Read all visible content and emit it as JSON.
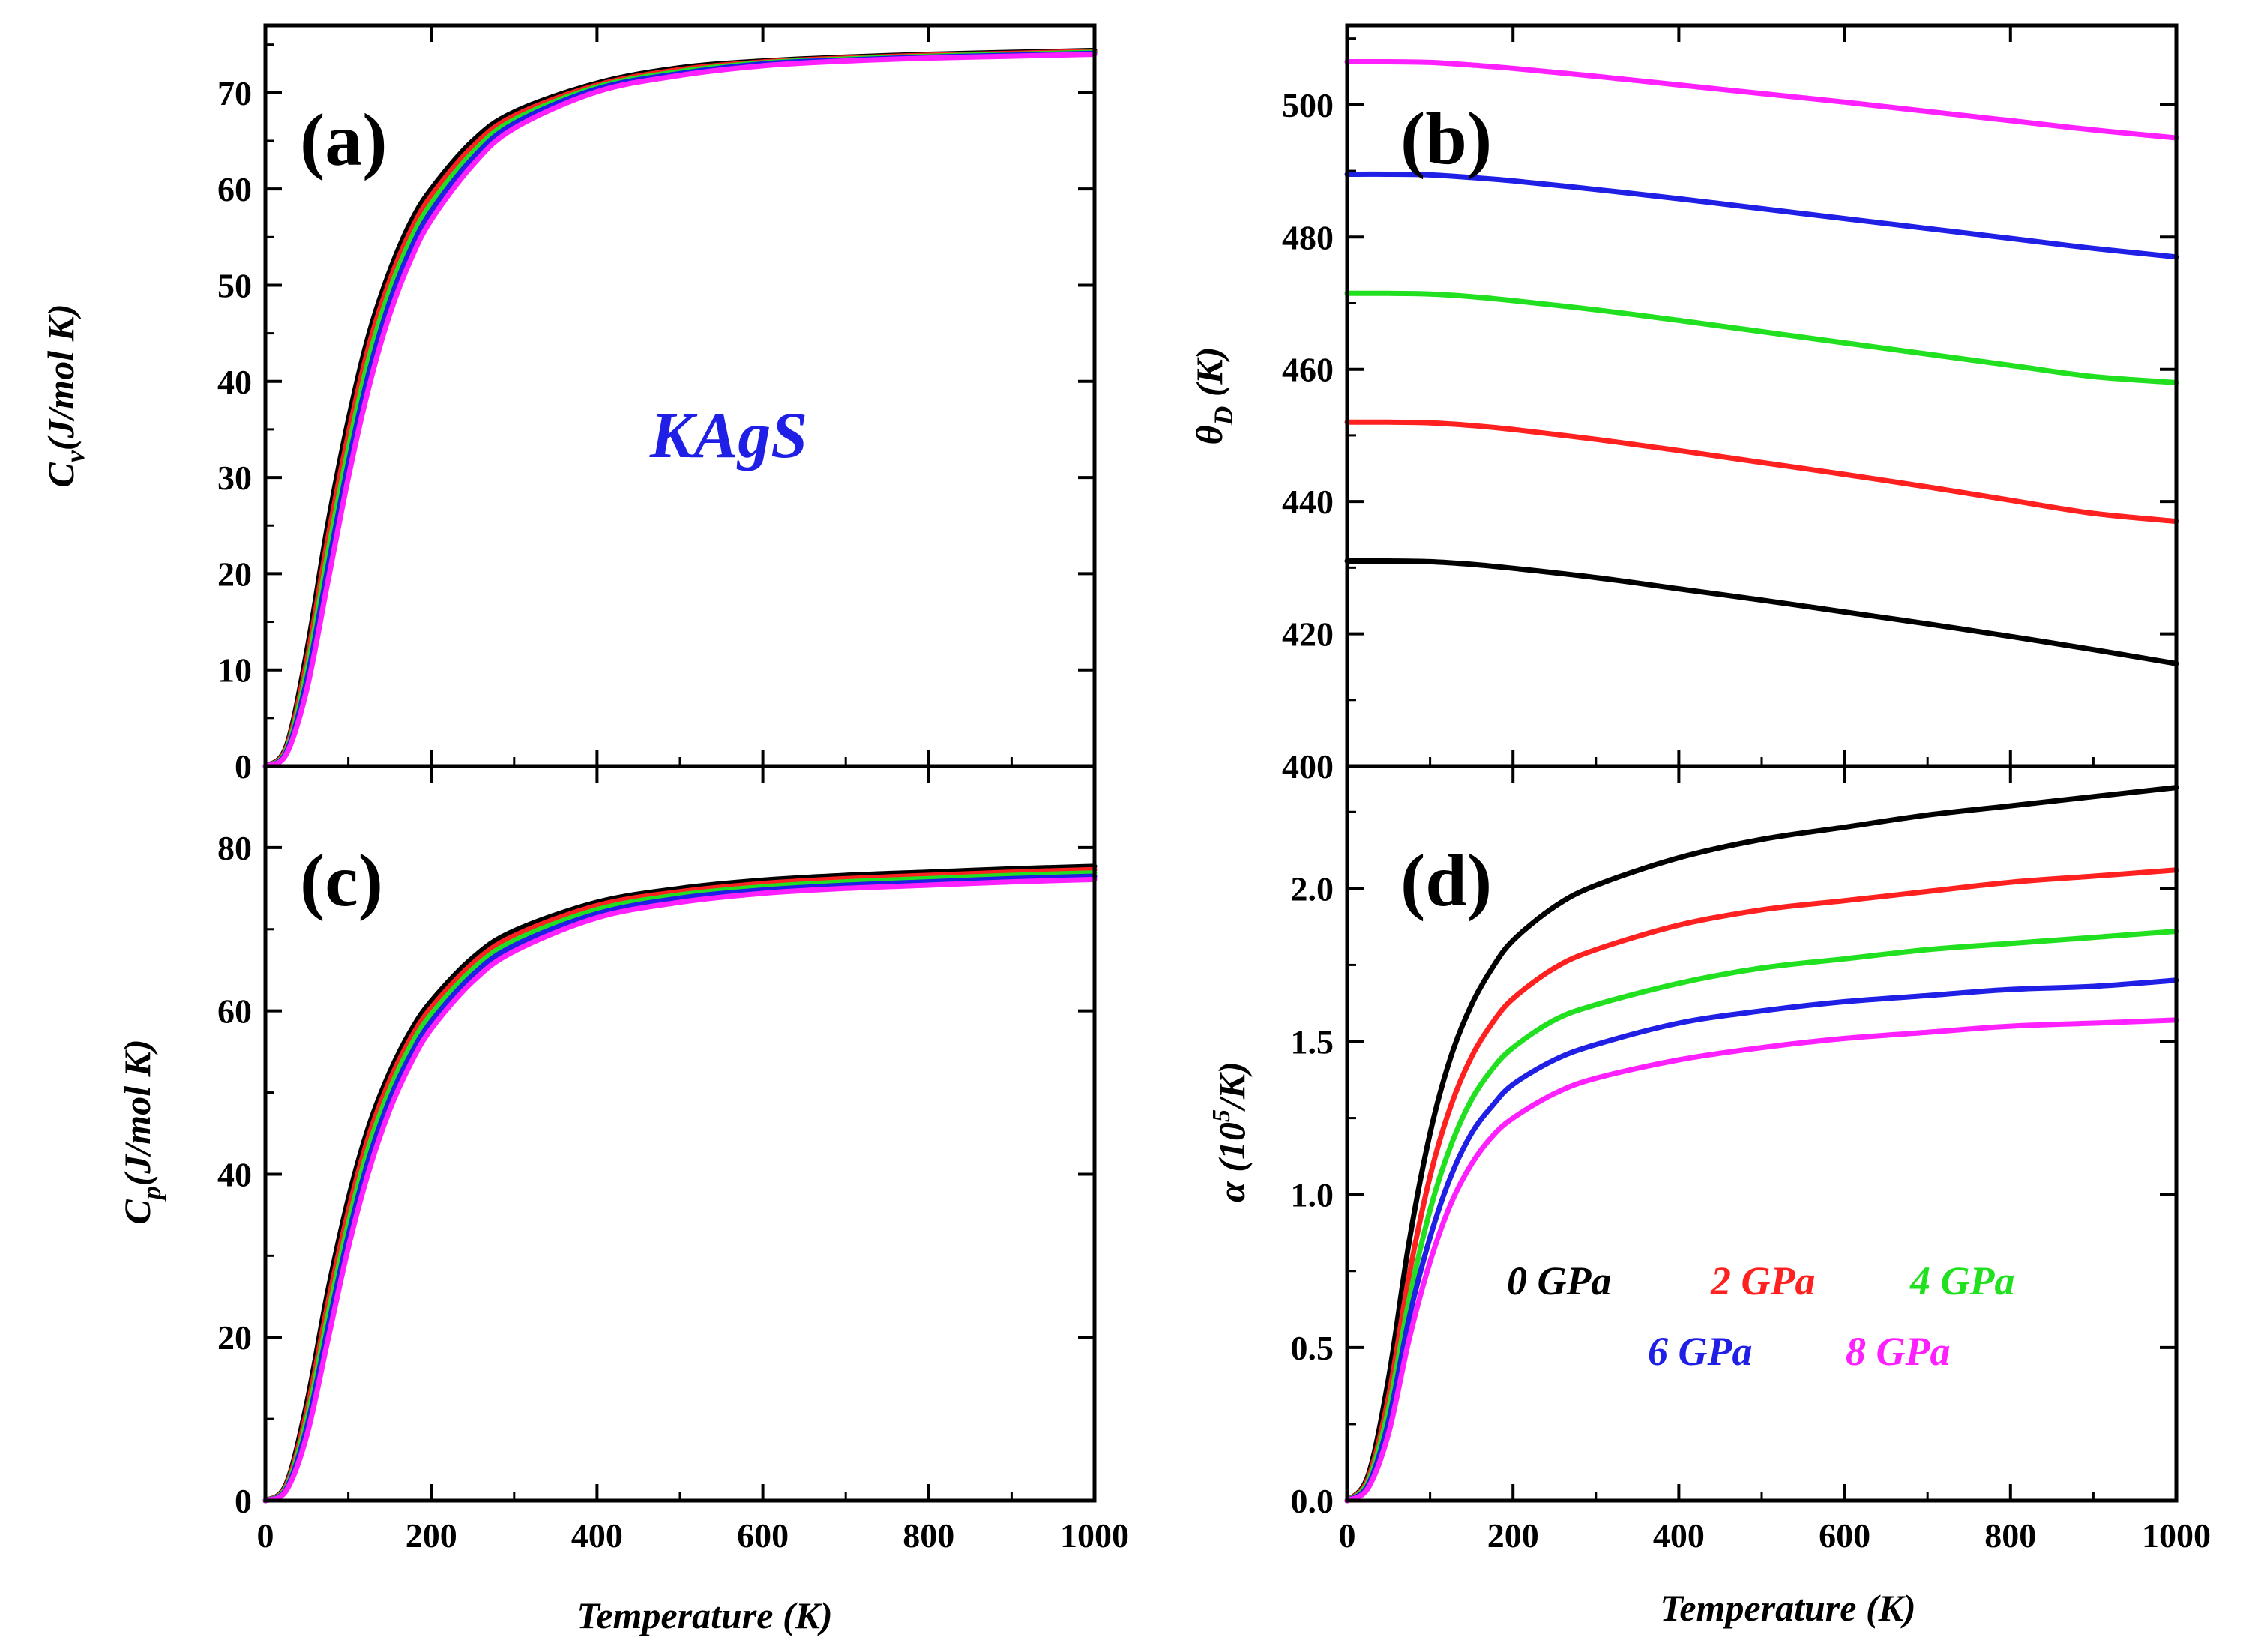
{
  "figure": {
    "material_label": "KAgS",
    "material_color": "#1f1fe6",
    "xlabel": "Temperature (K)"
  },
  "legend": {
    "entries": [
      {
        "name": "0 GPa",
        "color": "#000000"
      },
      {
        "name": "2 GPa",
        "color": "#ff2020"
      },
      {
        "name": "4 GPa",
        "color": "#20e020"
      },
      {
        "name": "6 GPa",
        "color": "#1f1fe6"
      },
      {
        "name": "8 GPa",
        "color": "#ff20ff"
      }
    ]
  },
  "chart_data": [
    {
      "id": "a",
      "type": "line",
      "panel_label": "(a)",
      "ylabel": "C",
      "ylabel_sub": "v",
      "ylabel_rest": "(J/mol K)",
      "xlim": [
        0,
        1000
      ],
      "ylim": [
        0,
        77
      ],
      "xticks": [
        0,
        200,
        400,
        600,
        800,
        1000
      ],
      "yticks": [
        0,
        10,
        20,
        30,
        40,
        50,
        60,
        70
      ],
      "x": [
        0,
        25,
        50,
        75,
        100,
        125,
        150,
        175,
        200,
        250,
        300,
        400,
        500,
        600,
        700,
        800,
        900,
        1000
      ],
      "series": [
        {
          "name": "0 GPa",
          "color": "#000000",
          "values": [
            0,
            2,
            12,
            25,
            36,
            45,
            51.5,
            56.5,
            60,
            65,
            68,
            71,
            72.6,
            73.3,
            73.7,
            74,
            74.2,
            74.4
          ]
        },
        {
          "name": "2 GPa",
          "color": "#ff2020",
          "values": [
            0,
            1.8,
            11,
            23.5,
            34.5,
            43.8,
            50.5,
            55.6,
            59.3,
            64.4,
            67.6,
            70.8,
            72.4,
            73.2,
            73.6,
            73.9,
            74.1,
            74.3
          ]
        },
        {
          "name": "4 GPa",
          "color": "#20e020",
          "values": [
            0,
            1.6,
            10,
            22,
            33,
            42.5,
            49.5,
            54.7,
            58.5,
            63.8,
            67.2,
            70.6,
            72.2,
            73.1,
            73.5,
            73.8,
            74,
            74.2
          ]
        },
        {
          "name": "6 GPa",
          "color": "#1f1fe6",
          "values": [
            0,
            1.4,
            9,
            20.5,
            31.5,
            41,
            48.3,
            53.7,
            57.7,
            63.2,
            66.8,
            70.4,
            72,
            73,
            73.4,
            73.7,
            73.9,
            74.1
          ]
        },
        {
          "name": "8 GPa",
          "color": "#ff20ff",
          "values": [
            0,
            1.2,
            8,
            19,
            30,
            39.5,
            47,
            52.6,
            56.8,
            62.5,
            66.3,
            70.1,
            71.8,
            72.8,
            73.3,
            73.6,
            73.8,
            74
          ]
        }
      ]
    },
    {
      "id": "b",
      "type": "line",
      "panel_label": "(b)",
      "ylabel": "θ",
      "ylabel_sub": "D",
      "ylabel_rest": " (K)",
      "xlim": [
        0,
        1000
      ],
      "ylim": [
        400,
        512
      ],
      "xticks": [
        0,
        200,
        400,
        600,
        800,
        1000
      ],
      "yticks": [
        400,
        420,
        440,
        460,
        480,
        500
      ],
      "x": [
        0,
        50,
        100,
        150,
        200,
        300,
        400,
        500,
        600,
        700,
        800,
        900,
        1000
      ],
      "series": [
        {
          "name": "0 GPa",
          "color": "#000000",
          "values": [
            431,
            431,
            430.9,
            430.5,
            429.9,
            428.5,
            426.8,
            425.1,
            423.3,
            421.5,
            419.6,
            417.6,
            415.5
          ]
        },
        {
          "name": "2 GPa",
          "color": "#ff2020",
          "values": [
            452,
            452,
            451.9,
            451.5,
            450.9,
            449.4,
            447.7,
            445.9,
            444.1,
            442.2,
            440.2,
            438.2,
            437
          ]
        },
        {
          "name": "4 GPa",
          "color": "#20e020",
          "values": [
            471.5,
            471.5,
            471.4,
            471,
            470.4,
            469,
            467.4,
            465.7,
            464,
            462.3,
            460.6,
            458.9,
            458
          ]
        },
        {
          "name": "6 GPa",
          "color": "#1f1fe6",
          "values": [
            489.5,
            489.5,
            489.4,
            489,
            488.5,
            487.2,
            485.8,
            484.3,
            482.8,
            481.3,
            479.8,
            478.3,
            477
          ]
        },
        {
          "name": "8 GPa",
          "color": "#ff20ff",
          "values": [
            506.5,
            506.5,
            506.4,
            506,
            505.5,
            504.3,
            503,
            501.7,
            500.4,
            499,
            497.6,
            496.2,
            495
          ]
        }
      ]
    },
    {
      "id": "c",
      "type": "line",
      "panel_label": "(c)",
      "ylabel": "C",
      "ylabel_sub": "p",
      "ylabel_rest": "(J/mol K)",
      "xlim": [
        0,
        1000
      ],
      "ylim": [
        0,
        90
      ],
      "xticks": [
        0,
        200,
        400,
        600,
        800,
        1000
      ],
      "yticks": [
        0,
        20,
        40,
        60,
        80
      ],
      "x": [
        0,
        25,
        50,
        75,
        100,
        125,
        150,
        175,
        200,
        250,
        300,
        400,
        500,
        600,
        700,
        800,
        900,
        1000
      ],
      "series": [
        {
          "name": "0 GPa",
          "color": "#000000",
          "values": [
            0,
            2,
            12,
            25.5,
            37,
            46,
            52.5,
            57.5,
            61.2,
            66.5,
            69.8,
            73.3,
            75,
            76,
            76.6,
            77,
            77.4,
            77.7
          ]
        },
        {
          "name": "2 GPa",
          "color": "#ff2020",
          "values": [
            0,
            1.8,
            11,
            24,
            35.5,
            44.8,
            51.5,
            56.6,
            60.4,
            65.8,
            69.2,
            72.9,
            74.6,
            75.6,
            76.2,
            76.6,
            77,
            77.3
          ]
        },
        {
          "name": "4 GPa",
          "color": "#20e020",
          "values": [
            0,
            1.6,
            10,
            22.5,
            34,
            43.5,
            50.4,
            55.7,
            59.6,
            65.1,
            68.6,
            72.4,
            74.2,
            75.2,
            75.8,
            76.2,
            76.6,
            76.9
          ]
        },
        {
          "name": "6 GPa",
          "color": "#1f1fe6",
          "values": [
            0,
            1.4,
            9,
            21,
            32.5,
            42,
            49.2,
            54.6,
            58.7,
            64.4,
            68,
            71.9,
            73.8,
            74.8,
            75.4,
            75.8,
            76.2,
            76.5
          ]
        },
        {
          "name": "8 GPa",
          "color": "#ff20ff",
          "values": [
            0,
            1.2,
            8,
            19.5,
            31,
            40.5,
            47.9,
            53.5,
            57.8,
            63.6,
            67.3,
            71.4,
            73.3,
            74.4,
            75,
            75.4,
            75.8,
            76.1
          ]
        }
      ]
    },
    {
      "id": "d",
      "type": "line",
      "panel_label": "(d)",
      "ylabel": "α (10",
      "ylabel_sup": "5",
      "ylabel_rest": "/K)",
      "xlim": [
        0,
        1000
      ],
      "ylim": [
        0,
        2.4
      ],
      "xticks": [
        0,
        200,
        400,
        600,
        800,
        1000
      ],
      "yticks": [
        0.0,
        0.5,
        1.0,
        1.5,
        2.0
      ],
      "ytick_labels": [
        "0.0",
        "0.5",
        "1.0",
        "1.5",
        "2.0"
      ],
      "x": [
        0,
        25,
        50,
        75,
        100,
        125,
        150,
        175,
        200,
        250,
        300,
        400,
        500,
        600,
        700,
        800,
        900,
        1000
      ],
      "series": [
        {
          "name": "0 GPa",
          "color": "#000000",
          "values": [
            0,
            0.08,
            0.4,
            0.85,
            1.2,
            1.45,
            1.62,
            1.74,
            1.83,
            1.94,
            2.01,
            2.1,
            2.16,
            2.2,
            2.24,
            2.27,
            2.3,
            2.33
          ]
        },
        {
          "name": "2 GPa",
          "color": "#ff2020",
          "values": [
            0,
            0.07,
            0.34,
            0.74,
            1.06,
            1.29,
            1.45,
            1.56,
            1.64,
            1.74,
            1.8,
            1.88,
            1.93,
            1.96,
            1.99,
            2.02,
            2.04,
            2.06
          ]
        },
        {
          "name": "4 GPa",
          "color": "#20e020",
          "values": [
            0,
            0.06,
            0.3,
            0.66,
            0.95,
            1.16,
            1.31,
            1.41,
            1.48,
            1.57,
            1.62,
            1.69,
            1.74,
            1.77,
            1.8,
            1.82,
            1.84,
            1.86
          ]
        },
        {
          "name": "6 GPa",
          "color": "#1f1fe6",
          "values": [
            0,
            0.05,
            0.26,
            0.6,
            0.86,
            1.06,
            1.2,
            1.29,
            1.36,
            1.44,
            1.49,
            1.56,
            1.6,
            1.63,
            1.65,
            1.67,
            1.68,
            1.7
          ]
        },
        {
          "name": "8 GPa",
          "color": "#ff20ff",
          "values": [
            0,
            0.04,
            0.22,
            0.53,
            0.78,
            0.97,
            1.1,
            1.19,
            1.25,
            1.33,
            1.38,
            1.44,
            1.48,
            1.51,
            1.53,
            1.55,
            1.56,
            1.57
          ]
        }
      ]
    }
  ]
}
